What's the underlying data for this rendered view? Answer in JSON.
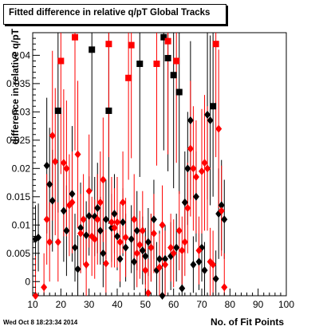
{
  "title": "Fitted difference in relative q/pT  Global Tracks",
  "footer": "Wed Oct  8 18:23:34 2014",
  "chart_data": {
    "type": "scatter",
    "title": "Fitted difference in relative q/pT  Global Tracks",
    "xlabel": "No. of Fit Points",
    "ylabel": "difference in relative q/pT",
    "xlim": [
      10,
      100
    ],
    "ylim": [
      -0.0025,
      0.044
    ],
    "x_ticks": [
      10,
      20,
      30,
      40,
      50,
      60,
      70,
      80,
      90,
      100
    ],
    "x_tick_labels": [
      "10",
      "20",
      "30",
      "40",
      "50",
      "60",
      "70",
      "80",
      "90",
      "100"
    ],
    "y_ticks": [
      0,
      0.005,
      0.01,
      0.015,
      0.02,
      0.025,
      0.03,
      0.035,
      0.04
    ],
    "y_tick_labels": [
      "0",
      "0.005",
      "0.01",
      "0.015",
      "0.02",
      "0.025",
      "0.03",
      "0.035",
      "0.04"
    ],
    "grid": false,
    "legend": "none",
    "series": [
      {
        "color": "#000000",
        "points": [
          {
            "x": 11,
            "y": 0.0075,
            "e": 0.006
          },
          {
            "x": 12,
            "y": 0.0078,
            "e": 0.006
          },
          {
            "x": 15,
            "y": 0.0205,
            "e": 0.012
          },
          {
            "x": 16,
            "y": 0.0172,
            "e": 0.01
          },
          {
            "x": 17,
            "y": 0.0143,
            "e": 0.009
          },
          {
            "x": 19,
            "y": 0.0302,
            "e": 0.018
          },
          {
            "x": 21,
            "y": 0.0125,
            "e": 0.009
          },
          {
            "x": 22,
            "y": 0.009,
            "e": 0.008
          },
          {
            "x": 24,
            "y": 0.0155,
            "e": 0.012
          },
          {
            "x": 25,
            "y": 0.006,
            "e": 0.006
          },
          {
            "x": 26,
            "y": 0.0022,
            "e": 0.006
          },
          {
            "x": 27,
            "y": 0.0095,
            "e": 0.008
          },
          {
            "x": 29,
            "y": 0.0082,
            "e": 0.006
          },
          {
            "x": 30,
            "y": 0.0116,
            "e": 0.007
          },
          {
            "x": 31,
            "y": 0.041,
            "e": 0.025
          },
          {
            "x": 32,
            "y": 0.0115,
            "e": 0.007
          },
          {
            "x": 33,
            "y": 0.013,
            "e": 0.008
          },
          {
            "x": 34,
            "y": 0.009,
            "e": 0.006
          },
          {
            "x": 35,
            "y": 0.005,
            "e": 0.006
          },
          {
            "x": 36,
            "y": 0.011,
            "e": 0.007
          },
          {
            "x": 37,
            "y": 0.0302,
            "e": 0.02
          },
          {
            "x": 38,
            "y": 0.0095,
            "e": 0.006
          },
          {
            "x": 39,
            "y": 0.012,
            "e": 0.007
          },
          {
            "x": 40,
            "y": 0.008,
            "e": 0.006
          },
          {
            "x": 41,
            "y": 0.004,
            "e": 0.005
          },
          {
            "x": 42,
            "y": 0.0105,
            "e": 0.006
          },
          {
            "x": 43,
            "y": 0.006,
            "e": 0.006
          },
          {
            "x": 45,
            "y": 0.0075,
            "e": 0.006
          },
          {
            "x": 46,
            "y": 0.0035,
            "e": 0.005
          },
          {
            "x": 47,
            "y": 0.009,
            "e": 0.007
          },
          {
            "x": 48,
            "y": 0.0385,
            "e": 0.02
          },
          {
            "x": 49,
            "y": 0.0055,
            "e": 0.006
          },
          {
            "x": 50,
            "y": 0.0045,
            "e": 0.005
          },
          {
            "x": 51,
            "y": 0.007,
            "e": 0.006
          },
          {
            "x": 52,
            "y": 0.006,
            "e": 0.006
          },
          {
            "x": 53,
            "y": 0.011,
            "e": 0.007
          },
          {
            "x": 54,
            "y": 0.002,
            "e": 0.005
          },
          {
            "x": 55,
            "y": 0.004,
            "e": 0.005
          },
          {
            "x": 56,
            "y": -0.0025,
            "e": 0.006
          },
          {
            "x": 56.5,
            "y": 0.0432,
            "e": 0.02
          },
          {
            "x": 57,
            "y": 0.004,
            "e": 0.006
          },
          {
            "x": 58,
            "y": 0.0395,
            "e": 0.02
          },
          {
            "x": 59,
            "y": 0.0045,
            "e": 0.006
          },
          {
            "x": 60,
            "y": 0.0365,
            "e": 0.02
          },
          {
            "x": 61,
            "y": 0.006,
            "e": 0.006
          },
          {
            "x": 62,
            "y": 0.0335,
            "e": 0.018
          },
          {
            "x": 63,
            "y": -0.0012,
            "e": 0.006
          },
          {
            "x": 64,
            "y": 0.014,
            "e": 0.009
          },
          {
            "x": 65,
            "y": 0.02,
            "e": 0.01
          },
          {
            "x": 66,
            "y": 0.0285,
            "e": 0.014
          },
          {
            "x": 67,
            "y": 0.003,
            "e": 0.005
          },
          {
            "x": 68,
            "y": 0.015,
            "e": 0.008
          },
          {
            "x": 69,
            "y": 0.0035,
            "e": 0.005
          },
          {
            "x": 70,
            "y": 0.006,
            "e": 0.006
          },
          {
            "x": 71,
            "y": 0.002,
            "e": 0.005
          },
          {
            "x": 72,
            "y": 0.0295,
            "e": 0.015
          },
          {
            "x": 73,
            "y": 0.0285,
            "e": 0.015
          },
          {
            "x": 74,
            "y": 0.031,
            "e": 0.016
          },
          {
            "x": 75,
            "y": 0.0005,
            "e": 0.005
          },
          {
            "x": 76,
            "y": 0.012,
            "e": 0.008
          },
          {
            "x": 77,
            "y": 0.0135,
            "e": 0.008
          },
          {
            "x": 78,
            "y": 0.011,
            "e": 0.007
          }
        ]
      },
      {
        "color": "#ff0000",
        "points": [
          {
            "x": 11,
            "y": -0.0025,
            "e": 0.007
          },
          {
            "x": 14,
            "y": -0.001,
            "e": 0.006
          },
          {
            "x": 15,
            "y": 0.011,
            "e": 0.008
          },
          {
            "x": 16,
            "y": 0.007,
            "e": 0.007
          },
          {
            "x": 17,
            "y": 0.0258,
            "e": 0.015
          },
          {
            "x": 18,
            "y": 0.0212,
            "e": 0.013
          },
          {
            "x": 19,
            "y": 0.007,
            "e": 0.007
          },
          {
            "x": 20,
            "y": 0.039,
            "e": 0.02
          },
          {
            "x": 21,
            "y": 0.021,
            "e": 0.013
          },
          {
            "x": 22,
            "y": 0.02,
            "e": 0.012
          },
          {
            "x": 23,
            "y": 0.0135,
            "e": 0.009
          },
          {
            "x": 24,
            "y": 0.014,
            "e": 0.009
          },
          {
            "x": 25,
            "y": 0.0432,
            "e": 0.02
          },
          {
            "x": 26,
            "y": 0.0225,
            "e": 0.013
          },
          {
            "x": 27,
            "y": 0.0085,
            "e": 0.007
          },
          {
            "x": 28,
            "y": 0.011,
            "e": 0.008
          },
          {
            "x": 29,
            "y": 0.003,
            "e": 0.006
          },
          {
            "x": 30,
            "y": 0.016,
            "e": 0.01
          },
          {
            "x": 31,
            "y": 0.008,
            "e": 0.007
          },
          {
            "x": 32,
            "y": 0.0075,
            "e": 0.007
          },
          {
            "x": 33,
            "y": 0.011,
            "e": 0.008
          },
          {
            "x": 34,
            "y": 0.014,
            "e": 0.009
          },
          {
            "x": 35,
            "y": 0.018,
            "e": 0.011
          },
          {
            "x": 36,
            "y": 0.0032,
            "e": 0.006
          },
          {
            "x": 37,
            "y": 0.042,
            "e": 0.02
          },
          {
            "x": 38,
            "y": 0.0105,
            "e": 0.008
          },
          {
            "x": 39,
            "y": 0.0095,
            "e": 0.007
          },
          {
            "x": 40,
            "y": 0.0105,
            "e": 0.008
          },
          {
            "x": 41,
            "y": 0.007,
            "e": 0.007
          },
          {
            "x": 42,
            "y": 0.014,
            "e": 0.009
          },
          {
            "x": 43,
            "y": 0.0078,
            "e": 0.007
          },
          {
            "x": 44,
            "y": 0.036,
            "e": 0.018
          },
          {
            "x": 45,
            "y": 0.0418,
            "e": 0.02
          },
          {
            "x": 46,
            "y": 0.011,
            "e": 0.008
          },
          {
            "x": 47,
            "y": 0.005,
            "e": 0.006
          },
          {
            "x": 48,
            "y": 0.0065,
            "e": 0.006
          },
          {
            "x": 49,
            "y": 0.009,
            "e": 0.007
          },
          {
            "x": 50,
            "y": 0.002,
            "e": 0.006
          },
          {
            "x": 51,
            "y": -0.002,
            "e": 0.006
          },
          {
            "x": 52,
            "y": 0.006,
            "e": 0.006
          },
          {
            "x": 53,
            "y": 0.0085,
            "e": 0.007
          },
          {
            "x": 54,
            "y": 0.0385,
            "e": 0.018
          },
          {
            "x": 55,
            "y": 0.0025,
            "e": 0.006
          },
          {
            "x": 56,
            "y": 0.01,
            "e": 0.007
          },
          {
            "x": 57,
            "y": 0.003,
            "e": 0.006
          },
          {
            "x": 58,
            "y": 0.0425,
            "e": 0.02
          },
          {
            "x": 59,
            "y": 0.006,
            "e": 0.006
          },
          {
            "x": 60,
            "y": 0.005,
            "e": 0.006
          },
          {
            "x": 61,
            "y": 0.039,
            "e": 0.018
          },
          {
            "x": 62,
            "y": 0.009,
            "e": 0.007
          },
          {
            "x": 63,
            "y": 0.0055,
            "e": 0.006
          },
          {
            "x": 64,
            "y": 0.007,
            "e": 0.006
          },
          {
            "x": 65,
            "y": 0.013,
            "e": 0.008
          },
          {
            "x": 66,
            "y": 0.0235,
            "e": 0.012
          },
          {
            "x": 67,
            "y": 0.02,
            "e": 0.011
          },
          {
            "x": 68,
            "y": 0.0185,
            "e": 0.01
          },
          {
            "x": 69,
            "y": 0.0055,
            "e": 0.006
          },
          {
            "x": 70,
            "y": 0.0195,
            "e": 0.011
          },
          {
            "x": 71,
            "y": 0.021,
            "e": 0.012
          },
          {
            "x": 72,
            "y": 0.02,
            "e": 0.011
          },
          {
            "x": 73,
            "y": 0.0035,
            "e": 0.006
          },
          {
            "x": 74,
            "y": 0.003,
            "e": 0.006
          },
          {
            "x": 75,
            "y": 0.042,
            "e": 0.02
          },
          {
            "x": 76,
            "y": 0.027,
            "e": 0.014
          },
          {
            "x": 77,
            "y": 0.0125,
            "e": 0.008
          },
          {
            "x": 78,
            "y": -0.001,
            "e": 0.006
          }
        ]
      }
    ]
  }
}
